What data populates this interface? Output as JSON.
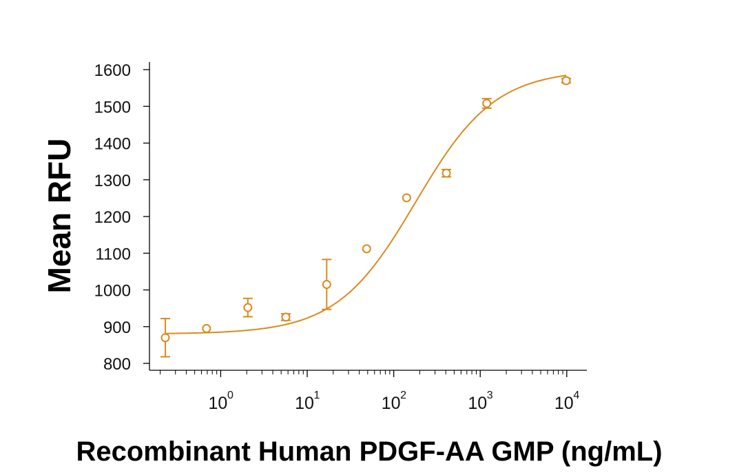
{
  "chart_data": {
    "type": "scatter",
    "title": "",
    "xlabel": "Recombinant Human PDGF-AA GMP (ng/mL)",
    "ylabel": "Mean RFU",
    "x_scale": "log",
    "xlim": [
      0.15,
      18000
    ],
    "ylim": [
      800,
      1600
    ],
    "yticks": [
      800,
      900,
      1000,
      1100,
      1200,
      1300,
      1400,
      1500,
      1600
    ],
    "xticks": [
      {
        "base": "10",
        "exp": "0",
        "value": 1
      },
      {
        "base": "10",
        "exp": "1",
        "value": 10
      },
      {
        "base": "10",
        "exp": "2",
        "value": 100
      },
      {
        "base": "10",
        "exp": "3",
        "value": 1000
      },
      {
        "base": "10",
        "exp": "4",
        "value": 10000
      }
    ],
    "grid": false,
    "legend": "none",
    "color": "#D98A1C",
    "points": [
      {
        "x": 0.229,
        "y": 870,
        "err": 52
      },
      {
        "x": 0.686,
        "y": 895,
        "err": 0
      },
      {
        "x": 2.06,
        "y": 952,
        "err": 25
      },
      {
        "x": 5.66,
        "y": 926,
        "err": 9
      },
      {
        "x": 16.8,
        "y": 1015,
        "err": 68
      },
      {
        "x": 48.6,
        "y": 1112,
        "err": 0
      },
      {
        "x": 141,
        "y": 1251,
        "err": 0
      },
      {
        "x": 406,
        "y": 1318,
        "err": 10
      },
      {
        "x": 1190,
        "y": 1508,
        "err": 13
      },
      {
        "x": 9850,
        "y": 1570,
        "err": 6
      }
    ],
    "fit_curve": {
      "model": "4PL",
      "bottom": 880,
      "top": 1600,
      "ec50": 180,
      "hill": 0.95
    }
  }
}
